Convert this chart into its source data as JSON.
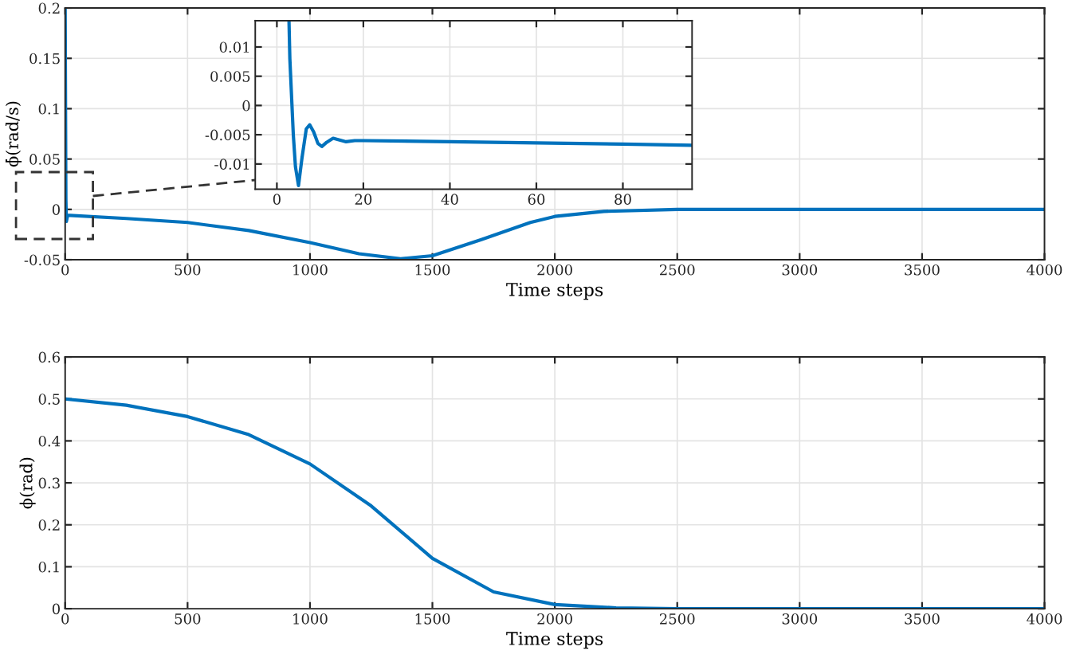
{
  "chart_data": [
    {
      "type": "line",
      "xlabel": "Time steps",
      "ylabel": "ϕ̇(rad/s)",
      "xlim": [
        0,
        4000
      ],
      "ylim": [
        -0.05,
        0.2
      ],
      "xticks": [
        0,
        500,
        1000,
        1500,
        2000,
        2500,
        3000,
        3500,
        4000
      ],
      "yticks": [
        -0.05,
        0,
        0.05,
        0.1,
        0.15,
        0.2
      ],
      "grid": true,
      "line_style": "solid",
      "marker": "none",
      "series": [
        {
          "color": "#0072bd",
          "x": [
            0,
            3,
            5,
            10,
            20,
            250,
            500,
            750,
            1000,
            1200,
            1370,
            1500,
            1700,
            1900,
            2000,
            2200,
            2500,
            3000,
            4000
          ],
          "values": [
            0.2,
            0.01,
            -0.012,
            -0.006,
            -0.006,
            -0.009,
            -0.013,
            -0.021,
            -0.033,
            -0.044,
            -0.049,
            -0.046,
            -0.03,
            -0.013,
            -0.007,
            -0.002,
            0,
            0,
            0
          ]
        }
      ]
    },
    {
      "type": "line",
      "xlim": [
        -5,
        96
      ],
      "ylim": [
        -0.0143,
        0.0145
      ],
      "xticks": [
        0,
        20,
        40,
        60,
        80
      ],
      "yticks": [
        -0.01,
        -0.005,
        0,
        0.005,
        0.01
      ],
      "grid": true,
      "line_style": "solid",
      "marker": "none",
      "series": [
        {
          "color": "#0072bd",
          "x": [
            2.8,
            3.0,
            3.8,
            4.3,
            5,
            5.8,
            6.8,
            7.6,
            8.5,
            9.5,
            10.4,
            11.5,
            13,
            14.5,
            16,
            18,
            20,
            40,
            60,
            80,
            96
          ],
          "values": [
            0.0145,
            0.008,
            -0.005,
            -0.0105,
            -0.0137,
            -0.009,
            -0.004,
            -0.0033,
            -0.0045,
            -0.0065,
            -0.007,
            -0.0063,
            -0.0056,
            -0.0059,
            -0.0062,
            -0.006,
            -0.006,
            -0.0062,
            -0.0064,
            -0.0066,
            -0.0068
          ]
        }
      ]
    },
    {
      "type": "line",
      "xlabel": "Time steps",
      "ylabel": "ϕ(rad)",
      "xlim": [
        0,
        4000
      ],
      "ylim": [
        0,
        0.6
      ],
      "xticks": [
        0,
        500,
        1000,
        1500,
        2000,
        2500,
        3000,
        3500,
        4000
      ],
      "yticks": [
        0,
        0.1,
        0.2,
        0.3,
        0.4,
        0.5,
        0.6
      ],
      "grid": true,
      "line_style": "solid",
      "marker": "none",
      "series": [
        {
          "color": "#0072bd",
          "x": [
            0,
            250,
            500,
            750,
            1000,
            1250,
            1500,
            1750,
            2000,
            2250,
            2500,
            3000,
            4000
          ],
          "values": [
            0.5,
            0.485,
            0.458,
            0.415,
            0.345,
            0.245,
            0.12,
            0.04,
            0.01,
            0.002,
            0,
            0,
            0
          ]
        }
      ]
    }
  ]
}
